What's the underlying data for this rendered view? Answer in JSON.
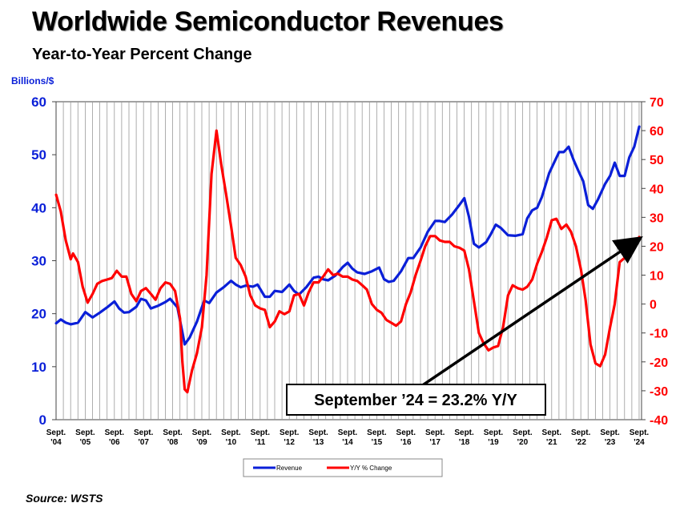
{
  "header": {
    "title": "Worldwide Semiconductor Revenues",
    "subtitle": "Year-to-Year Percent Change",
    "left_axis_unit": "Billions/$"
  },
  "source": "Source: WSTS",
  "colors": {
    "revenue": "#0a1fd8",
    "yoy": "#ff0000",
    "grid": "#9a9a9a",
    "annotation": "#000000"
  },
  "chart_data": {
    "type": "line",
    "title": "Worldwide Semiconductor Revenues",
    "subtitle": "Year-to-Year Percent Change",
    "ylabel": "Billions/$",
    "ylim": [
      0,
      60
    ],
    "y2lim": [
      -40,
      70
    ],
    "yticks": [
      0,
      10,
      20,
      30,
      40,
      50,
      60
    ],
    "y2ticks": [
      -40,
      -30,
      -20,
      -10,
      0,
      10,
      20,
      30,
      40,
      50,
      60,
      70
    ],
    "xlim": [
      2004.667,
      2024.75
    ],
    "x_ticks": [
      {
        "value": 2004.667,
        "line1": "Sept.",
        "line2": "'04"
      },
      {
        "value": 2005.667,
        "line1": "Sept.",
        "line2": "'05"
      },
      {
        "value": 2006.667,
        "line1": "Sept.",
        "line2": "'06"
      },
      {
        "value": 2007.667,
        "line1": "Sept.",
        "line2": "'07"
      },
      {
        "value": 2008.667,
        "line1": "Sept.",
        "line2": "'08"
      },
      {
        "value": 2009.667,
        "line1": "Sept.",
        "line2": "'09"
      },
      {
        "value": 2010.667,
        "line1": "Sept.",
        "line2": "'10"
      },
      {
        "value": 2011.667,
        "line1": "Sept.",
        "line2": "'11"
      },
      {
        "value": 2012.667,
        "line1": "Sept.",
        "line2": "'12"
      },
      {
        "value": 2013.667,
        "line1": "Sept.",
        "line2": "'13"
      },
      {
        "value": 2014.667,
        "line1": "Sept.",
        "line2": "'14"
      },
      {
        "value": 2015.667,
        "line1": "Sept.",
        "line2": "'15"
      },
      {
        "value": 2016.667,
        "line1": "Sept.",
        "line2": "'16"
      },
      {
        "value": 2017.667,
        "line1": "Sept.",
        "line2": "'17"
      },
      {
        "value": 2018.667,
        "line1": "Sept.",
        "line2": "'18"
      },
      {
        "value": 2019.667,
        "line1": "Sept.",
        "line2": "'19"
      },
      {
        "value": 2020.667,
        "line1": "Sept.",
        "line2": "'20"
      },
      {
        "value": 2021.667,
        "line1": "Sept.",
        "line2": "'21"
      },
      {
        "value": 2022.667,
        "line1": "Sept.",
        "line2": "'22"
      },
      {
        "value": 2023.667,
        "line1": "Sept.",
        "line2": "'23"
      },
      {
        "value": 2024.667,
        "line1": "Sept.",
        "line2": "'24"
      }
    ],
    "grid": true,
    "legend_position": "bottom-center",
    "series": [
      {
        "name": "Revenue",
        "axis": "left",
        "color": "#0a1fd8",
        "points": [
          [
            2004.67,
            18.2
          ],
          [
            2004.83,
            18.9
          ],
          [
            2005.0,
            18.3
          ],
          [
            2005.17,
            18.0
          ],
          [
            2005.42,
            18.3
          ],
          [
            2005.67,
            20.3
          ],
          [
            2005.92,
            19.3
          ],
          [
            2006.17,
            20.2
          ],
          [
            2006.42,
            21.2
          ],
          [
            2006.67,
            22.3
          ],
          [
            2006.83,
            21.0
          ],
          [
            2007.0,
            20.2
          ],
          [
            2007.17,
            20.3
          ],
          [
            2007.42,
            21.3
          ],
          [
            2007.58,
            22.8
          ],
          [
            2007.75,
            22.5
          ],
          [
            2007.92,
            21.0
          ],
          [
            2008.17,
            21.5
          ],
          [
            2008.42,
            22.2
          ],
          [
            2008.58,
            22.8
          ],
          [
            2008.83,
            21.2
          ],
          [
            2009.0,
            16.5
          ],
          [
            2009.08,
            14.2
          ],
          [
            2009.25,
            15.5
          ],
          [
            2009.5,
            18.5
          ],
          [
            2009.75,
            22.5
          ],
          [
            2009.92,
            22.0
          ],
          [
            2010.17,
            24.0
          ],
          [
            2010.42,
            25.0
          ],
          [
            2010.67,
            26.2
          ],
          [
            2010.83,
            25.5
          ],
          [
            2011.0,
            25.0
          ],
          [
            2011.17,
            25.3
          ],
          [
            2011.42,
            25.1
          ],
          [
            2011.58,
            25.5
          ],
          [
            2011.83,
            23.2
          ],
          [
            2012.0,
            23.2
          ],
          [
            2012.17,
            24.3
          ],
          [
            2012.42,
            24.1
          ],
          [
            2012.67,
            25.5
          ],
          [
            2012.83,
            24.3
          ],
          [
            2013.0,
            23.6
          ],
          [
            2013.25,
            25.0
          ],
          [
            2013.5,
            26.8
          ],
          [
            2013.67,
            27.0
          ],
          [
            2013.83,
            26.5
          ],
          [
            2014.0,
            26.3
          ],
          [
            2014.25,
            27.2
          ],
          [
            2014.5,
            28.8
          ],
          [
            2014.67,
            29.6
          ],
          [
            2014.83,
            28.5
          ],
          [
            2015.0,
            27.8
          ],
          [
            2015.25,
            27.5
          ],
          [
            2015.5,
            28.0
          ],
          [
            2015.75,
            28.7
          ],
          [
            2015.92,
            26.5
          ],
          [
            2016.08,
            26.0
          ],
          [
            2016.25,
            26.2
          ],
          [
            2016.5,
            28.0
          ],
          [
            2016.75,
            30.5
          ],
          [
            2016.92,
            30.5
          ],
          [
            2017.17,
            32.5
          ],
          [
            2017.42,
            35.5
          ],
          [
            2017.67,
            37.5
          ],
          [
            2017.83,
            37.5
          ],
          [
            2018.0,
            37.3
          ],
          [
            2018.25,
            38.7
          ],
          [
            2018.5,
            40.5
          ],
          [
            2018.67,
            41.8
          ],
          [
            2018.83,
            38.3
          ],
          [
            2019.0,
            33.2
          ],
          [
            2019.17,
            32.5
          ],
          [
            2019.42,
            33.5
          ],
          [
            2019.58,
            35.0
          ],
          [
            2019.75,
            36.8
          ],
          [
            2019.92,
            36.2
          ],
          [
            2020.17,
            34.8
          ],
          [
            2020.42,
            34.7
          ],
          [
            2020.67,
            35.0
          ],
          [
            2020.83,
            38.0
          ],
          [
            2021.0,
            39.5
          ],
          [
            2021.17,
            40.0
          ],
          [
            2021.33,
            42.0
          ],
          [
            2021.58,
            46.5
          ],
          [
            2021.75,
            48.5
          ],
          [
            2021.92,
            50.5
          ],
          [
            2022.08,
            50.5
          ],
          [
            2022.25,
            51.5
          ],
          [
            2022.42,
            49.0
          ],
          [
            2022.58,
            47.0
          ],
          [
            2022.75,
            45.0
          ],
          [
            2022.92,
            40.5
          ],
          [
            2023.08,
            39.8
          ],
          [
            2023.25,
            41.5
          ],
          [
            2023.5,
            44.5
          ],
          [
            2023.67,
            46.0
          ],
          [
            2023.83,
            48.5
          ],
          [
            2024.0,
            46.0
          ],
          [
            2024.17,
            46.0
          ],
          [
            2024.33,
            49.5
          ],
          [
            2024.5,
            51.5
          ],
          [
            2024.67,
            55.3
          ]
        ]
      },
      {
        "name": "Y/Y % Change",
        "axis": "right",
        "color": "#ff0000",
        "points": [
          [
            2004.67,
            37.8
          ],
          [
            2004.83,
            32.0
          ],
          [
            2005.0,
            22.0
          ],
          [
            2005.17,
            15.5
          ],
          [
            2005.25,
            17.5
          ],
          [
            2005.42,
            14.5
          ],
          [
            2005.58,
            6.0
          ],
          [
            2005.75,
            0.5
          ],
          [
            2005.92,
            3.5
          ],
          [
            2006.08,
            7.0
          ],
          [
            2006.25,
            8.0
          ],
          [
            2006.42,
            8.5
          ],
          [
            2006.58,
            9.0
          ],
          [
            2006.75,
            11.5
          ],
          [
            2006.92,
            9.5
          ],
          [
            2007.08,
            9.5
          ],
          [
            2007.25,
            3.5
          ],
          [
            2007.42,
            1.0
          ],
          [
            2007.58,
            4.5
          ],
          [
            2007.75,
            5.5
          ],
          [
            2007.92,
            3.5
          ],
          [
            2008.08,
            1.5
          ],
          [
            2008.25,
            5.5
          ],
          [
            2008.42,
            7.5
          ],
          [
            2008.58,
            7.0
          ],
          [
            2008.75,
            4.5
          ],
          [
            2008.92,
            -5.0
          ],
          [
            2009.0,
            -20.0
          ],
          [
            2009.08,
            -29.5
          ],
          [
            2009.17,
            -30.5
          ],
          [
            2009.33,
            -23.0
          ],
          [
            2009.5,
            -17.0
          ],
          [
            2009.67,
            -8.0
          ],
          [
            2009.83,
            10.0
          ],
          [
            2010.0,
            45.0
          ],
          [
            2010.17,
            60.0
          ],
          [
            2010.33,
            48.5
          ],
          [
            2010.5,
            38.0
          ],
          [
            2010.67,
            27.0
          ],
          [
            2010.83,
            16.0
          ],
          [
            2011.0,
            13.5
          ],
          [
            2011.17,
            9.5
          ],
          [
            2011.33,
            3.0
          ],
          [
            2011.5,
            -0.5
          ],
          [
            2011.67,
            -1.5
          ],
          [
            2011.83,
            -2.0
          ],
          [
            2012.0,
            -8.0
          ],
          [
            2012.17,
            -6.0
          ],
          [
            2012.33,
            -2.5
          ],
          [
            2012.5,
            -3.5
          ],
          [
            2012.67,
            -2.5
          ],
          [
            2012.83,
            3.0
          ],
          [
            2013.0,
            3.5
          ],
          [
            2013.17,
            -0.5
          ],
          [
            2013.33,
            4.0
          ],
          [
            2013.5,
            7.5
          ],
          [
            2013.67,
            7.5
          ],
          [
            2013.83,
            9.5
          ],
          [
            2014.0,
            12.0
          ],
          [
            2014.17,
            10.0
          ],
          [
            2014.33,
            10.5
          ],
          [
            2014.5,
            9.5
          ],
          [
            2014.67,
            9.5
          ],
          [
            2014.83,
            8.5
          ],
          [
            2015.0,
            8.0
          ],
          [
            2015.17,
            6.5
          ],
          [
            2015.33,
            5.0
          ],
          [
            2015.5,
            0.0
          ],
          [
            2015.67,
            -2.0
          ],
          [
            2015.83,
            -3.0
          ],
          [
            2016.0,
            -5.5
          ],
          [
            2016.17,
            -6.5
          ],
          [
            2016.33,
            -7.5
          ],
          [
            2016.5,
            -6.0
          ],
          [
            2016.67,
            0.0
          ],
          [
            2016.83,
            4.0
          ],
          [
            2017.0,
            10.0
          ],
          [
            2017.17,
            15.0
          ],
          [
            2017.33,
            20.0
          ],
          [
            2017.5,
            23.5
          ],
          [
            2017.67,
            23.5
          ],
          [
            2017.83,
            22.0
          ],
          [
            2018.0,
            21.5
          ],
          [
            2018.17,
            21.5
          ],
          [
            2018.33,
            20.0
          ],
          [
            2018.5,
            19.5
          ],
          [
            2018.67,
            18.5
          ],
          [
            2018.83,
            12.0
          ],
          [
            2019.0,
            1.0
          ],
          [
            2019.17,
            -10.0
          ],
          [
            2019.33,
            -13.5
          ],
          [
            2019.5,
            -16.0
          ],
          [
            2019.67,
            -15.0
          ],
          [
            2019.83,
            -14.5
          ],
          [
            2020.0,
            -8.0
          ],
          [
            2020.17,
            3.0
          ],
          [
            2020.33,
            6.5
          ],
          [
            2020.5,
            5.5
          ],
          [
            2020.67,
            5.0
          ],
          [
            2020.83,
            6.0
          ],
          [
            2021.0,
            8.5
          ],
          [
            2021.17,
            14.0
          ],
          [
            2021.33,
            18.0
          ],
          [
            2021.5,
            23.0
          ],
          [
            2021.67,
            29.0
          ],
          [
            2021.83,
            29.5
          ],
          [
            2022.0,
            26.0
          ],
          [
            2022.17,
            27.5
          ],
          [
            2022.33,
            25.0
          ],
          [
            2022.5,
            20.0
          ],
          [
            2022.67,
            12.0
          ],
          [
            2022.83,
            1.5
          ],
          [
            2023.0,
            -14.0
          ],
          [
            2023.17,
            -20.5
          ],
          [
            2023.33,
            -21.5
          ],
          [
            2023.5,
            -17.5
          ],
          [
            2023.67,
            -8.0
          ],
          [
            2023.83,
            0.0
          ],
          [
            2024.0,
            14.5
          ],
          [
            2024.17,
            16.0
          ],
          [
            2024.33,
            18.0
          ],
          [
            2024.5,
            19.5
          ],
          [
            2024.67,
            23.2
          ]
        ]
      }
    ],
    "annotation": {
      "text": "September ’24 = 23.2% Y/Y",
      "arrow_from": [
        2017.25,
        -28.0
      ],
      "arrow_to": [
        2024.75,
        23.2
      ]
    }
  }
}
